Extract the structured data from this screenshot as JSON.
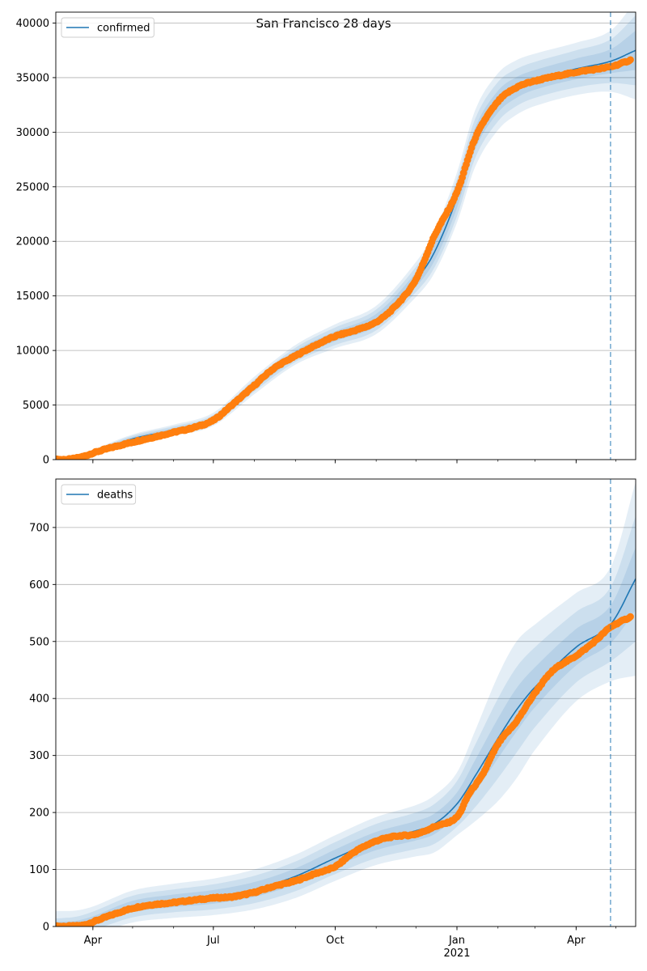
{
  "title": "San Francisco 28 days",
  "colors": {
    "model_line": "#1f77b4",
    "band": "#1f77b4",
    "observed": "#ff7f0e",
    "grid": "#b0b0b0",
    "vline": "#1f77b4"
  },
  "chart_data": [
    {
      "type": "line",
      "name": "confirmed-panel",
      "legend": {
        "label": "confirmed",
        "placement": "top-left"
      },
      "x_tick_labels": [
        "Apr",
        "Jul",
        "Oct",
        "Jan",
        "Apr"
      ],
      "x_tick_dates": [
        "2020-04-01",
        "2020-07-01",
        "2020-10-01",
        "2021-01-01",
        "2021-04-01"
      ],
      "x_year_label": "2021",
      "x_range": [
        "2020-03-04",
        "2021-05-16"
      ],
      "ylim": [
        0,
        41000
      ],
      "y_ticks": [
        0,
        5000,
        10000,
        15000,
        20000,
        25000,
        30000,
        35000,
        40000
      ],
      "grid": "horizontal",
      "forecast_start": "2021-04-27",
      "model": [
        {
          "date": "2020-03-04",
          "value": 0
        },
        {
          "date": "2020-03-19",
          "value": 100
        },
        {
          "date": "2020-04-01",
          "value": 600
        },
        {
          "date": "2020-05-01",
          "value": 1900
        },
        {
          "date": "2020-06-01",
          "value": 2700
        },
        {
          "date": "2020-07-01",
          "value": 3700
        },
        {
          "date": "2020-08-01",
          "value": 6800
        },
        {
          "date": "2020-09-01",
          "value": 9600
        },
        {
          "date": "2020-10-01",
          "value": 11300
        },
        {
          "date": "2020-11-01",
          "value": 12800
        },
        {
          "date": "2020-12-01",
          "value": 16500
        },
        {
          "date": "2020-12-15",
          "value": 19000
        },
        {
          "date": "2021-01-01",
          "value": 24000
        },
        {
          "date": "2021-01-15",
          "value": 29500
        },
        {
          "date": "2021-02-01",
          "value": 32800
        },
        {
          "date": "2021-02-15",
          "value": 34100
        },
        {
          "date": "2021-03-01",
          "value": 34800
        },
        {
          "date": "2021-04-01",
          "value": 35800
        },
        {
          "date": "2021-04-27",
          "value": 36500
        },
        {
          "date": "2021-05-16",
          "value": 37500
        }
      ],
      "bands": [
        {
          "opacity": 0.12,
          "half_widths": [
            100,
            150,
            300,
            400,
            500,
            600,
            800,
            900,
            1100,
            1300,
            1600,
            1900,
            2300,
            2600,
            2600,
            2500,
            2400,
            2400,
            2800,
            4500
          ]
        },
        {
          "opacity": 0.12,
          "half_widths": [
            70,
            100,
            200,
            300,
            350,
            400,
            550,
            650,
            800,
            950,
            1150,
            1400,
            1700,
            1800,
            1800,
            1700,
            1650,
            1700,
            2000,
            3200
          ]
        },
        {
          "opacity": 0.12,
          "half_widths": [
            40,
            60,
            120,
            170,
            200,
            250,
            320,
            380,
            450,
            550,
            650,
            800,
            950,
            1000,
            1000,
            950,
            900,
            950,
            1100,
            1800
          ]
        }
      ],
      "observed_keypoints": [
        {
          "date": "2020-03-04",
          "value": 0
        },
        {
          "date": "2020-03-15",
          "value": 40
        },
        {
          "date": "2020-03-25",
          "value": 300
        },
        {
          "date": "2020-04-01",
          "value": 600
        },
        {
          "date": "2020-04-15",
          "value": 1100
        },
        {
          "date": "2020-05-01",
          "value": 1600
        },
        {
          "date": "2020-05-15",
          "value": 2000
        },
        {
          "date": "2020-06-01",
          "value": 2500
        },
        {
          "date": "2020-06-15",
          "value": 2900
        },
        {
          "date": "2020-07-01",
          "value": 3600
        },
        {
          "date": "2020-07-15",
          "value": 5000
        },
        {
          "date": "2020-08-01",
          "value": 6800
        },
        {
          "date": "2020-08-15",
          "value": 8300
        },
        {
          "date": "2020-09-01",
          "value": 9500
        },
        {
          "date": "2020-09-15",
          "value": 10400
        },
        {
          "date": "2020-10-01",
          "value": 11300
        },
        {
          "date": "2020-10-15",
          "value": 11800
        },
        {
          "date": "2020-11-01",
          "value": 12600
        },
        {
          "date": "2020-11-15",
          "value": 14000
        },
        {
          "date": "2020-12-01",
          "value": 16500
        },
        {
          "date": "2020-12-15",
          "value": 20500
        },
        {
          "date": "2021-01-01",
          "value": 24500
        },
        {
          "date": "2021-01-15",
          "value": 29500
        },
        {
          "date": "2021-02-01",
          "value": 32800
        },
        {
          "date": "2021-02-15",
          "value": 34100
        },
        {
          "date": "2021-03-01",
          "value": 34700
        },
        {
          "date": "2021-04-01",
          "value": 35500
        },
        {
          "date": "2021-04-27",
          "value": 36000
        },
        {
          "date": "2021-05-12",
          "value": 36600
        }
      ]
    },
    {
      "type": "line",
      "name": "deaths-panel",
      "legend": {
        "label": "deaths",
        "placement": "top-left"
      },
      "x_tick_labels": [
        "Apr",
        "Jul",
        "Oct",
        "Jan",
        "Apr"
      ],
      "x_tick_dates": [
        "2020-04-01",
        "2020-07-01",
        "2020-10-01",
        "2021-01-01",
        "2021-04-01"
      ],
      "x_year_label": "2021",
      "x_range": [
        "2020-03-04",
        "2021-05-16"
      ],
      "ylim": [
        0,
        785
      ],
      "y_ticks": [
        0,
        100,
        200,
        300,
        400,
        500,
        600,
        700
      ],
      "grid": "horizontal",
      "forecast_start": "2021-04-27",
      "model": [
        {
          "date": "2020-03-04",
          "value": 2
        },
        {
          "date": "2020-03-19",
          "value": 3
        },
        {
          "date": "2020-04-01",
          "value": 10
        },
        {
          "date": "2020-05-01",
          "value": 35
        },
        {
          "date": "2020-06-01",
          "value": 45
        },
        {
          "date": "2020-07-01",
          "value": 52
        },
        {
          "date": "2020-08-01",
          "value": 65
        },
        {
          "date": "2020-09-01",
          "value": 88
        },
        {
          "date": "2020-10-01",
          "value": 120
        },
        {
          "date": "2020-11-01",
          "value": 150
        },
        {
          "date": "2020-12-01",
          "value": 168
        },
        {
          "date": "2020-12-15",
          "value": 180
        },
        {
          "date": "2021-01-01",
          "value": 215
        },
        {
          "date": "2021-01-15",
          "value": 265
        },
        {
          "date": "2021-02-01",
          "value": 330
        },
        {
          "date": "2021-02-15",
          "value": 380
        },
        {
          "date": "2021-03-01",
          "value": 420
        },
        {
          "date": "2021-04-01",
          "value": 490
        },
        {
          "date": "2021-04-27",
          "value": 530
        },
        {
          "date": "2021-05-16",
          "value": 610
        }
      ],
      "bands": [
        {
          "opacity": 0.12,
          "half_widths": [
            25,
            25,
            25,
            28,
            30,
            32,
            35,
            38,
            40,
            42,
            45,
            50,
            55,
            80,
            110,
            120,
            110,
            95,
            100,
            170
          ]
        },
        {
          "opacity": 0.12,
          "half_widths": [
            12,
            14,
            16,
            19,
            20,
            22,
            24,
            26,
            28,
            30,
            32,
            35,
            40,
            55,
            70,
            75,
            70,
            62,
            65,
            110
          ]
        },
        {
          "opacity": 0.12,
          "half_widths": [
            6,
            7,
            8,
            10,
            11,
            12,
            13,
            14,
            15,
            16,
            17,
            18,
            20,
            28,
            35,
            38,
            35,
            32,
            33,
            55
          ]
        }
      ],
      "observed_keypoints": [
        {
          "date": "2020-03-04",
          "value": 0
        },
        {
          "date": "2020-03-24",
          "value": 2
        },
        {
          "date": "2020-04-01",
          "value": 8
        },
        {
          "date": "2020-04-15",
          "value": 20
        },
        {
          "date": "2020-05-01",
          "value": 32
        },
        {
          "date": "2020-05-15",
          "value": 38
        },
        {
          "date": "2020-06-01",
          "value": 42
        },
        {
          "date": "2020-06-15",
          "value": 46
        },
        {
          "date": "2020-07-01",
          "value": 50
        },
        {
          "date": "2020-07-15",
          "value": 52
        },
        {
          "date": "2020-08-01",
          "value": 60
        },
        {
          "date": "2020-08-15",
          "value": 70
        },
        {
          "date": "2020-09-01",
          "value": 80
        },
        {
          "date": "2020-09-15",
          "value": 92
        },
        {
          "date": "2020-10-01",
          "value": 105
        },
        {
          "date": "2020-10-15",
          "value": 130
        },
        {
          "date": "2020-11-01",
          "value": 150
        },
        {
          "date": "2020-11-15",
          "value": 158
        },
        {
          "date": "2020-12-01",
          "value": 162
        },
        {
          "date": "2020-12-15",
          "value": 175
        },
        {
          "date": "2021-01-01",
          "value": 192
        },
        {
          "date": "2021-01-10",
          "value": 232
        },
        {
          "date": "2021-01-20",
          "value": 265
        },
        {
          "date": "2021-02-01",
          "value": 320
        },
        {
          "date": "2021-02-15",
          "value": 360
        },
        {
          "date": "2021-03-01",
          "value": 410
        },
        {
          "date": "2021-03-15",
          "value": 450
        },
        {
          "date": "2021-04-01",
          "value": 475
        },
        {
          "date": "2021-04-15",
          "value": 500
        },
        {
          "date": "2021-04-27",
          "value": 525
        },
        {
          "date": "2021-05-12",
          "value": 543
        }
      ]
    }
  ]
}
